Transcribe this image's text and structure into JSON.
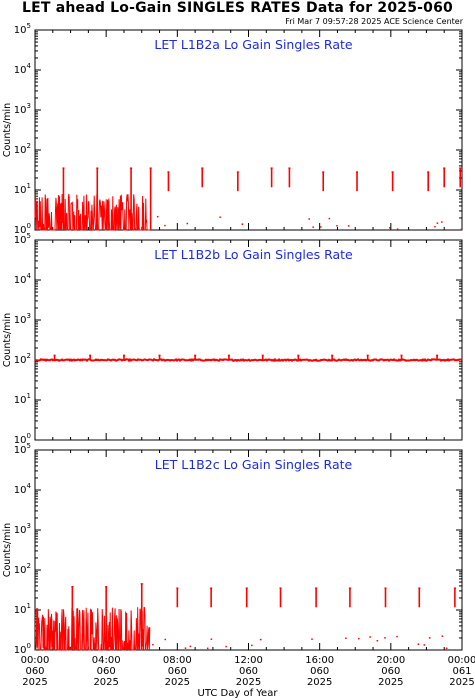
{
  "header": {
    "title": "LET ahead Lo-Gain SINGLES RATES Data for 2025-060",
    "timestamp": "Fri Mar  7 09:57:28 2025 ACE Science Center"
  },
  "x_axis_label": "UTC Day of Year",
  "chart_data": [
    {
      "type": "line",
      "title": "LET L1B2a Lo Gain Singles Rate",
      "ylabel": "Counts/min",
      "yscale": "log",
      "ylim": [
        1,
        100000
      ],
      "xlim": [
        0,
        24
      ],
      "color": "#ff0000",
      "series": [
        {
          "noise_segment": {
            "x_range": [
              0,
              6.5
            ],
            "typical": [
              1,
              8
            ]
          },
          "spikes": [
            {
              "x": 1.6,
              "y": 35
            },
            {
              "x": 3.5,
              "y": 35
            },
            {
              "x": 5.4,
              "y": 35
            },
            {
              "x": 6.5,
              "y": 35
            },
            {
              "x": 7.5,
              "y": 28
            },
            {
              "x": 9.4,
              "y": 35
            },
            {
              "x": 11.4,
              "y": 28
            },
            {
              "x": 13.3,
              "y": 35
            },
            {
              "x": 14.3,
              "y": 35
            },
            {
              "x": 16.2,
              "y": 28
            },
            {
              "x": 18.1,
              "y": 28
            },
            {
              "x": 20.1,
              "y": 28
            },
            {
              "x": 22.1,
              "y": 28
            },
            {
              "x": 23.0,
              "y": 35
            },
            {
              "x": 23.9,
              "y": 35
            }
          ]
        }
      ]
    },
    {
      "type": "line",
      "title": "LET L1B2b Lo Gain Singles Rate",
      "ylabel": "Counts/min",
      "yscale": "log",
      "ylim": [
        1,
        100000
      ],
      "xlim": [
        0,
        24
      ],
      "color": "#ff0000",
      "series": [
        {
          "baseline": 100,
          "spikes": [
            {
              "x": 1.1,
              "y": 130
            },
            {
              "x": 3.1,
              "y": 130
            },
            {
              "x": 5.0,
              "y": 130
            },
            {
              "x": 7.0,
              "y": 130
            },
            {
              "x": 9.0,
              "y": 130
            },
            {
              "x": 10.9,
              "y": 130
            },
            {
              "x": 12.8,
              "y": 130
            },
            {
              "x": 14.8,
              "y": 130
            },
            {
              "x": 16.7,
              "y": 130
            },
            {
              "x": 18.7,
              "y": 130
            },
            {
              "x": 20.6,
              "y": 130
            },
            {
              "x": 22.6,
              "y": 130
            }
          ]
        }
      ]
    },
    {
      "type": "line",
      "title": "LET L1B2c Lo Gain Singles Rate",
      "ylabel": "Counts/min",
      "yscale": "log",
      "ylim": [
        1,
        100000
      ],
      "xlim": [
        0,
        24
      ],
      "color": "#ff0000",
      "series": [
        {
          "noise_segment": {
            "x_range": [
              0,
              6.5
            ],
            "typical": [
              1,
              12
            ]
          },
          "spikes": [
            {
              "x": 2.1,
              "y": 38
            },
            {
              "x": 4.0,
              "y": 38
            },
            {
              "x": 6.0,
              "y": 45
            },
            {
              "x": 8.0,
              "y": 35
            },
            {
              "x": 9.9,
              "y": 35
            },
            {
              "x": 11.9,
              "y": 35
            },
            {
              "x": 13.8,
              "y": 35
            },
            {
              "x": 15.8,
              "y": 35
            },
            {
              "x": 17.7,
              "y": 35
            },
            {
              "x": 19.7,
              "y": 35
            },
            {
              "x": 21.6,
              "y": 35
            },
            {
              "x": 23.6,
              "y": 35
            }
          ]
        }
      ]
    }
  ],
  "x_ticks": [
    {
      "time": "00:00",
      "doy": "060",
      "year": "2025"
    },
    {
      "time": "04:00",
      "doy": "060",
      "year": "2025"
    },
    {
      "time": "08:00",
      "doy": "060",
      "year": "2025"
    },
    {
      "time": "12:00",
      "doy": "060",
      "year": "2025"
    },
    {
      "time": "16:00",
      "doy": "060",
      "year": "2025"
    },
    {
      "time": "20:00",
      "doy": "060",
      "year": "2025"
    },
    {
      "time": "00:00",
      "doy": "061",
      "year": "2025"
    }
  ],
  "y_tick_exponents": [
    "0",
    "1",
    "2",
    "3",
    "4",
    "5"
  ]
}
